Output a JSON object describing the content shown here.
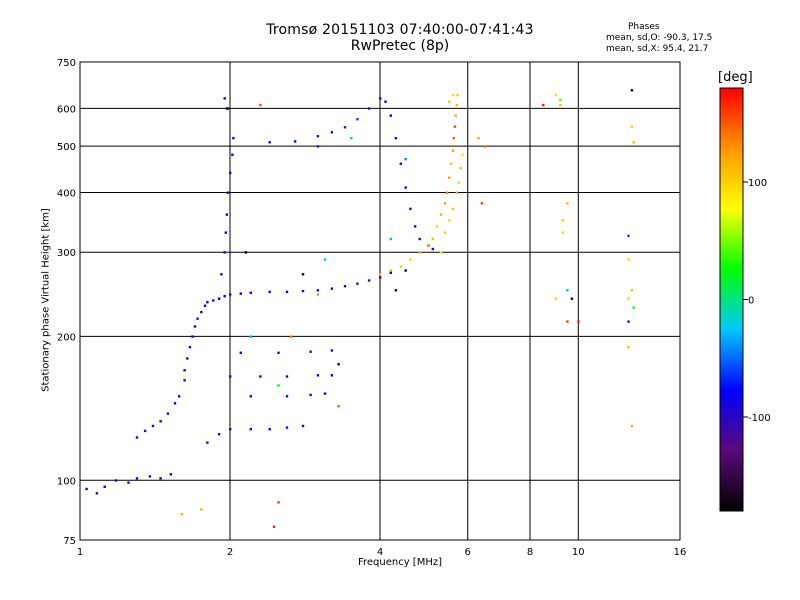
{
  "figure": {
    "title_line1": "Tromsø 20151103 07:40:00-07:41:43",
    "title_line2": "RwPretec (8p)",
    "phases_heading": "Phases",
    "phases_o": "mean, sd,O: -90.3, 17.5",
    "phases_x": "mean, sd,X:  95.4, 21.7"
  },
  "chart_data": {
    "type": "scatter",
    "xlabel": "Frequency [MHz]",
    "ylabel": "Stationary phase Virtual Height [km]",
    "x_scale": "log",
    "y_scale": "log",
    "xlim": [
      1,
      16
    ],
    "ylim": [
      75,
      750
    ],
    "x_ticks": [
      1,
      2,
      4,
      6,
      8,
      10,
      16
    ],
    "x_tick_labels": [
      "1",
      "2",
      "4",
      "6",
      "8",
      "10",
      "16"
    ],
    "y_ticks": [
      75,
      100,
      200,
      300,
      400,
      500,
      600,
      750
    ],
    "y_tick_labels": [
      "75",
      "100",
      "200",
      "300",
      "400",
      "500",
      "600",
      "750"
    ],
    "grid": true,
    "colorbar": {
      "label": "[deg]",
      "range": [
        -180,
        180
      ],
      "ticks": [
        -100,
        0,
        100
      ],
      "tick_labels": [
        "-100",
        "0",
        "100"
      ],
      "colors": [
        "#000000",
        "#5a0a78",
        "#0000ff",
        "#00c8ff",
        "#00ff00",
        "#ffff00",
        "#ff9600",
        "#ff0000"
      ]
    },
    "series": [
      {
        "points": [
          [
            1.03,
            96,
            -95
          ],
          [
            1.08,
            94,
            -100
          ],
          [
            1.12,
            97,
            -90
          ],
          [
            1.18,
            100,
            -92
          ],
          [
            1.25,
            99,
            -95
          ],
          [
            1.3,
            101,
            -88
          ],
          [
            1.38,
            102,
            -94
          ],
          [
            1.45,
            101,
            -90
          ],
          [
            1.52,
            103,
            -97
          ],
          [
            1.3,
            123,
            -92
          ],
          [
            1.35,
            127,
            -90
          ],
          [
            1.4,
            130,
            -95
          ],
          [
            1.45,
            133,
            -88
          ],
          [
            1.5,
            138,
            -93
          ],
          [
            1.55,
            145,
            -90
          ],
          [
            1.58,
            150,
            -96
          ],
          [
            1.62,
            162,
            -92
          ],
          [
            1.62,
            170,
            -90
          ],
          [
            1.64,
            180,
            -94
          ],
          [
            1.66,
            190,
            -89
          ],
          [
            1.68,
            200,
            -93
          ],
          [
            1.7,
            210,
            -91
          ],
          [
            1.72,
            218,
            -95
          ],
          [
            1.75,
            225,
            -90
          ],
          [
            1.78,
            232,
            -92
          ],
          [
            1.8,
            236,
            -94
          ],
          [
            1.85,
            238,
            -90
          ],
          [
            1.9,
            240,
            -93
          ],
          [
            1.95,
            243,
            -88
          ],
          [
            2.0,
            245,
            -92
          ],
          [
            2.1,
            246,
            -90
          ],
          [
            2.2,
            247,
            -94
          ],
          [
            2.4,
            248,
            -90
          ],
          [
            2.6,
            248,
            -91
          ],
          [
            2.8,
            249,
            -93
          ],
          [
            3.0,
            250,
            -89
          ],
          [
            3.2,
            252,
            -95
          ],
          [
            3.4,
            255,
            -98
          ],
          [
            3.6,
            258,
            -105
          ],
          [
            3.8,
            262,
            -112
          ],
          [
            4.0,
            266,
            -120
          ],
          [
            4.2,
            272,
            -150
          ],
          [
            1.9,
            240,
            -95
          ],
          [
            1.92,
            270,
            -90
          ],
          [
            1.95,
            300,
            -92
          ],
          [
            1.96,
            330,
            -94
          ],
          [
            1.97,
            360,
            -90
          ],
          [
            1.98,
            400,
            -95
          ],
          [
            2.0,
            440,
            -92
          ],
          [
            2.02,
            480,
            -90
          ],
          [
            2.03,
            520,
            -93
          ],
          [
            1.98,
            600,
            -90
          ],
          [
            1.95,
            630,
            -95
          ],
          [
            1.8,
            120,
            -92
          ],
          [
            1.9,
            125,
            -90
          ],
          [
            2.0,
            128,
            -93
          ],
          [
            2.2,
            128,
            -94
          ],
          [
            2.4,
            128,
            -89
          ],
          [
            2.6,
            129,
            -92
          ],
          [
            2.8,
            130,
            -90
          ],
          [
            2.0,
            165,
            -94
          ],
          [
            2.3,
            165,
            -90
          ],
          [
            2.6,
            165,
            -92
          ],
          [
            3.0,
            166,
            -89
          ],
          [
            3.2,
            166,
            -95
          ],
          [
            2.2,
            150,
            -90
          ],
          [
            2.6,
            150,
            -92
          ],
          [
            2.9,
            151,
            -94
          ],
          [
            3.1,
            152,
            -90
          ],
          [
            2.1,
            185,
            -92
          ],
          [
            2.5,
            185,
            -90
          ],
          [
            2.9,
            186,
            -93
          ],
          [
            3.2,
            187,
            -88
          ],
          [
            2.4,
            510,
            -92
          ],
          [
            2.7,
            512,
            -90
          ],
          [
            3.0,
            525,
            -94
          ],
          [
            3.2,
            535,
            -100
          ],
          [
            3.4,
            548,
            -120
          ],
          [
            3.6,
            570,
            -60
          ],
          [
            3.8,
            600,
            -90
          ],
          [
            4.0,
            630,
            -100
          ],
          [
            4.1,
            620,
            -92
          ],
          [
            4.2,
            580,
            -90
          ],
          [
            4.3,
            520,
            -93
          ],
          [
            4.4,
            460,
            -95
          ],
          [
            4.5,
            410,
            -90
          ],
          [
            4.6,
            370,
            -92
          ],
          [
            4.7,
            340,
            -94
          ],
          [
            4.8,
            320,
            -90
          ],
          [
            5.0,
            310,
            -150
          ],
          [
            5.1,
            305,
            -92
          ]
        ]
      },
      {
        "points": [
          [
            4.0,
            270,
            110
          ],
          [
            4.2,
            275,
            115
          ],
          [
            4.4,
            280,
            100
          ],
          [
            4.6,
            290,
            105
          ],
          [
            4.8,
            300,
            120
          ],
          [
            5.0,
            310,
            130
          ],
          [
            5.1,
            320,
            110
          ],
          [
            5.2,
            340,
            100
          ],
          [
            5.3,
            360,
            115
          ],
          [
            5.4,
            380,
            125
          ],
          [
            5.45,
            400,
            140
          ],
          [
            5.5,
            430,
            120
          ],
          [
            5.55,
            460,
            110
          ],
          [
            5.6,
            490,
            130
          ],
          [
            5.62,
            520,
            145
          ],
          [
            5.65,
            550,
            160
          ],
          [
            5.67,
            580,
            120
          ],
          [
            5.7,
            610,
            110
          ],
          [
            5.72,
            640,
            100
          ],
          [
            5.6,
            640,
            95
          ],
          [
            5.5,
            620,
            105
          ],
          [
            5.3,
            300,
            90
          ],
          [
            5.4,
            330,
            100
          ],
          [
            5.5,
            350,
            95
          ],
          [
            5.6,
            370,
            110
          ],
          [
            5.7,
            400,
            120
          ],
          [
            5.75,
            420,
            100
          ],
          [
            5.8,
            450,
            110
          ],
          [
            5.85,
            480,
            90
          ],
          [
            6.3,
            520,
            120
          ],
          [
            6.5,
            500,
            140
          ],
          [
            9.2,
            610,
            110
          ],
          [
            9.0,
            640,
            95
          ],
          [
            12.8,
            550,
            100
          ],
          [
            12.9,
            510,
            110
          ],
          [
            9.3,
            350,
            105
          ],
          [
            9.3,
            330,
            100
          ],
          [
            12.8,
            250,
            110
          ],
          [
            12.6,
            290,
            100
          ],
          [
            12.6,
            190,
            115
          ],
          [
            12.8,
            130,
            120
          ],
          [
            9.0,
            240,
            105
          ],
          [
            9.5,
            380,
            115
          ]
        ]
      },
      {
        "points": [
          [
            8.5,
            610,
            170
          ],
          [
            10.0,
            215,
            170
          ],
          [
            9.5,
            215,
            160
          ],
          [
            2.3,
            610,
            150
          ],
          [
            2.5,
            90,
            160
          ],
          [
            1.6,
            85,
            120
          ],
          [
            1.75,
            87,
            110
          ],
          [
            2.45,
            80,
            170
          ],
          [
            3.0,
            245,
            130
          ],
          [
            2.65,
            200,
            140
          ],
          [
            6.4,
            380,
            160
          ],
          [
            3.3,
            143,
            150
          ]
        ]
      },
      {
        "points": [
          [
            12.6,
            215,
            -110
          ],
          [
            12.6,
            240,
            60
          ],
          [
            12.9,
            230,
            20
          ],
          [
            9.5,
            250,
            -10
          ],
          [
            9.2,
            625,
            40
          ],
          [
            12.6,
            325,
            -60
          ],
          [
            4.2,
            320,
            -30
          ],
          [
            3.1,
            290,
            -20
          ],
          [
            4.5,
            470,
            -40
          ],
          [
            3.0,
            500,
            -70
          ],
          [
            2.5,
            158,
            10
          ],
          [
            2.2,
            200,
            -30
          ],
          [
            3.5,
            520,
            -15
          ]
        ]
      },
      {
        "points": [
          [
            12.8,
            655,
            -170
          ],
          [
            9.7,
            240,
            -175
          ],
          [
            1.97,
            600,
            -170
          ],
          [
            2.15,
            300,
            -175
          ],
          [
            2.8,
            270,
            -172
          ],
          [
            4.3,
            250,
            -168
          ],
          [
            4.5,
            275,
            -178
          ],
          [
            3.3,
            175,
            -170
          ]
        ]
      }
    ]
  }
}
